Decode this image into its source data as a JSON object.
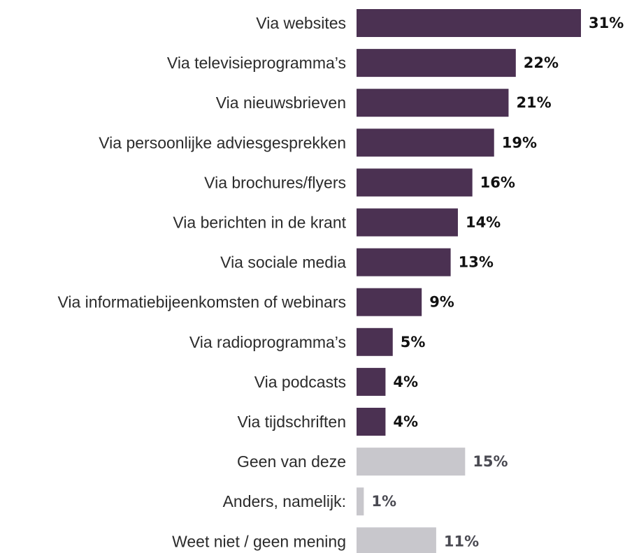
{
  "chart_data": {
    "type": "bar",
    "orientation": "horizontal",
    "categories": [
      "Via websites",
      "Via televisieprogramma’s",
      "Via nieuwsbrieven",
      "Via persoonlijke adviesgesprekken",
      "Via brochures/flyers",
      "Via berichten in de krant",
      "Via sociale media",
      "Via informatiebijeenkomsten of webinars",
      "Via radioprogramma’s",
      "Via podcasts",
      "Via tijdschriften",
      "Geen van deze",
      "Anders, namelijk:",
      "Weet niet / geen mening"
    ],
    "values": [
      31,
      22,
      21,
      19,
      16,
      14,
      13,
      9,
      5,
      4,
      4,
      15,
      1,
      11
    ],
    "value_labels": [
      "31%",
      "22%",
      "21%",
      "19%",
      "16%",
      "14%",
      "13%",
      "9%",
      "5%",
      "4%",
      "4%",
      "15%",
      "1%",
      "11%"
    ],
    "bar_colors": [
      "#4b3152",
      "#4b3152",
      "#4b3152",
      "#4b3152",
      "#4b3152",
      "#4b3152",
      "#4b3152",
      "#4b3152",
      "#4b3152",
      "#4b3152",
      "#4b3152",
      "#c8c7cc",
      "#c8c7cc",
      "#c8c7cc"
    ],
    "value_label_colors": [
      "#111111",
      "#111111",
      "#111111",
      "#111111",
      "#111111",
      "#111111",
      "#111111",
      "#111111",
      "#111111",
      "#111111",
      "#111111",
      "#4a4a52",
      "#4a4a52",
      "#4a4a52"
    ],
    "xlim": [
      0,
      31
    ],
    "unit": "%",
    "title": "",
    "xlabel": "",
    "ylabel": "",
    "grid": false,
    "legend": "none"
  }
}
